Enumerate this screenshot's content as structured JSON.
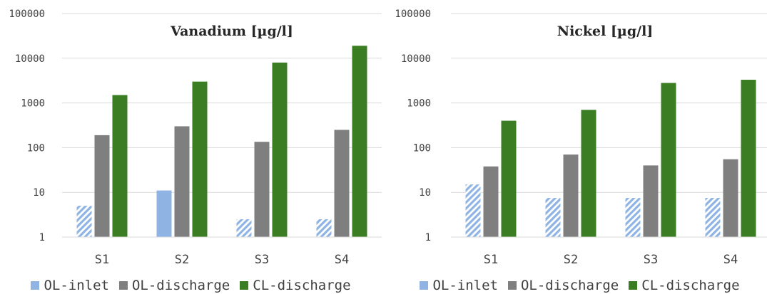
{
  "colors": {
    "ol_inlet": "#8fb4e3",
    "ol_inlet_hatch": "#ffffff",
    "ol_discharge": "#7f7f7f",
    "cl_discharge": "#3a7d22",
    "grid": "#d9d9d9",
    "axis_text": "#404040",
    "title_text": "#262626"
  },
  "chart_data": [
    {
      "type": "bar",
      "title": "Vanadium [µg/l]",
      "yscale": "log",
      "ylim": [
        1,
        100000
      ],
      "yticks": [
        "1",
        "10",
        "100",
        "1000",
        "10000",
        "100000"
      ],
      "grid": true,
      "legend_position": "bottom",
      "categories": [
        "S1",
        "S2",
        "S3",
        "S4"
      ],
      "series": [
        {
          "name": "OL-inlet",
          "values": [
            5,
            11,
            2.5,
            2.5
          ],
          "hatched": [
            true,
            false,
            true,
            true
          ]
        },
        {
          "name": "OL-discharge",
          "values": [
            190,
            300,
            135,
            250
          ]
        },
        {
          "name": "CL-discharge",
          "values": [
            1500,
            3000,
            8000,
            19000
          ]
        }
      ]
    },
    {
      "type": "bar",
      "title": "Nickel [µg/l]",
      "yscale": "log",
      "ylim": [
        1,
        100000
      ],
      "yticks": [
        "1",
        "10",
        "100",
        "1000",
        "10000",
        "100000"
      ],
      "grid": true,
      "legend_position": "bottom",
      "categories": [
        "S1",
        "S2",
        "S3",
        "S4"
      ],
      "series": [
        {
          "name": "OL-inlet",
          "values": [
            15,
            7.5,
            7.5,
            7.5
          ],
          "hatched": [
            true,
            true,
            true,
            true
          ]
        },
        {
          "name": "OL-discharge",
          "values": [
            38,
            70,
            40,
            55
          ]
        },
        {
          "name": "CL-discharge",
          "values": [
            400,
            700,
            2800,
            3300
          ]
        }
      ]
    }
  ]
}
